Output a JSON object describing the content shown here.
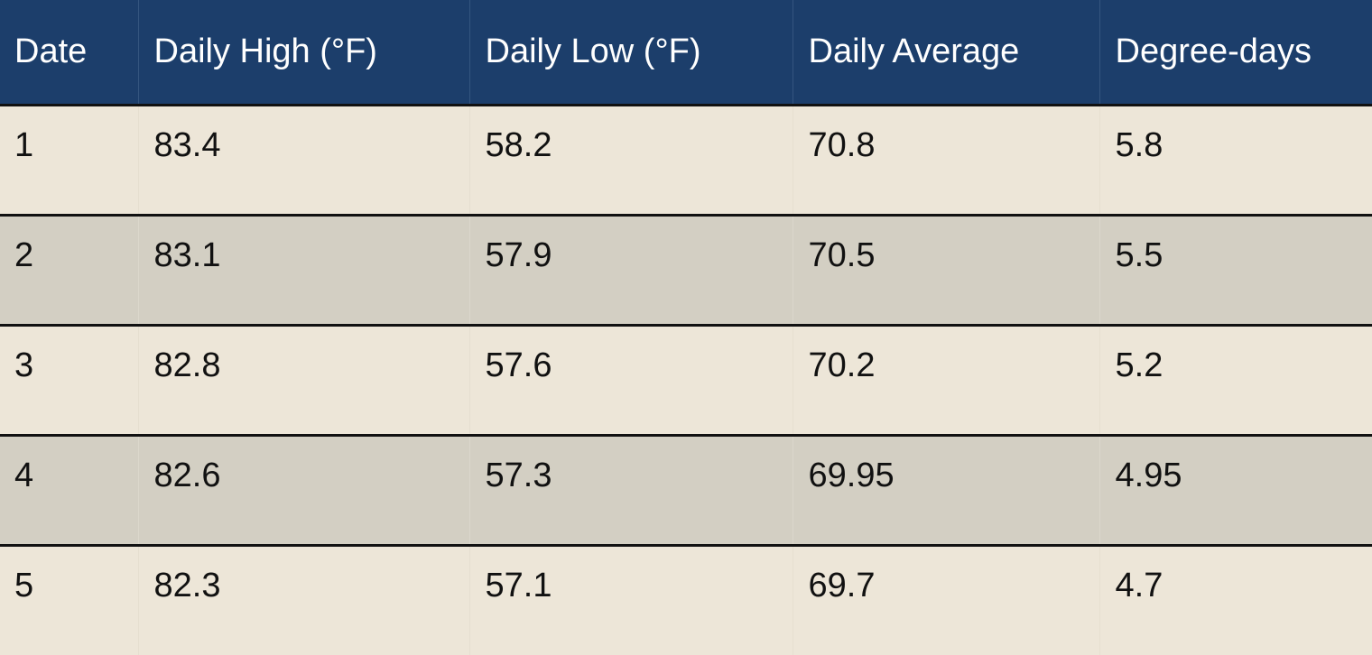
{
  "table": {
    "headers": [
      "Date",
      "Daily High (°F)",
      "Daily Low (°F)",
      "Daily Average",
      "Degree-days"
    ],
    "rows": [
      [
        "1",
        "83.4",
        "58.2",
        "70.8",
        "5.8"
      ],
      [
        "2",
        "83.1",
        "57.9",
        "70.5",
        "5.5"
      ],
      [
        "3",
        "82.8",
        "57.6",
        "70.2",
        "5.2"
      ],
      [
        "4",
        "82.6",
        "57.3",
        "69.95",
        "4.95"
      ],
      [
        "5",
        "82.3",
        "57.1",
        "69.7",
        "4.7"
      ]
    ]
  },
  "colors": {
    "header_bg": "#1c3e6b",
    "header_text": "#ffffff",
    "row_odd_bg": "#ede6d8",
    "row_even_bg": "#d3cfc3",
    "divider": "#111111"
  }
}
